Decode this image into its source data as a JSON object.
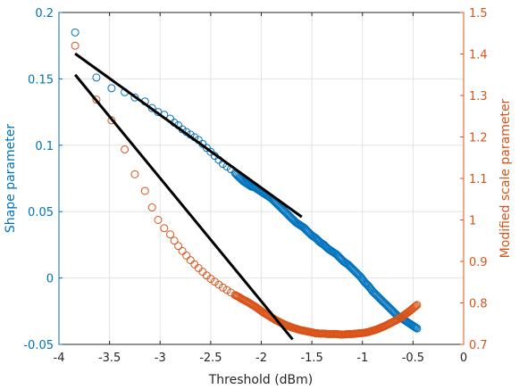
{
  "chart_data": {
    "type": "scatter",
    "title": "",
    "xlabel": "Threshold (dBm)",
    "ylabel_left": "Shape parameter",
    "ylabel_right": "Modified scale parameter",
    "xlim": [
      -4,
      0
    ],
    "ylim_left": [
      -0.05,
      0.2
    ],
    "ylim_right": [
      0.7,
      1.5
    ],
    "x_ticks": [
      "-4",
      "-3.5",
      "-3",
      "-2.5",
      "-2",
      "-1.5",
      "-1",
      "-0.5",
      "0"
    ],
    "y_left_ticks": [
      "-0.05",
      "0",
      "0.05",
      "0.1",
      "0.15",
      "0.2"
    ],
    "y_right_ticks": [
      "0.7",
      "0.8",
      "0.9",
      "1",
      "1.1",
      "1.2",
      "1.3",
      "1.4",
      "1.5"
    ],
    "grid": true,
    "colors": {
      "left_axis": "#0072BD",
      "right_axis": "#D95319",
      "fit": "#000000",
      "axes": "#262626"
    },
    "series": [
      {
        "name": "Shape parameter",
        "axis": "left",
        "marker": "circle",
        "x": [
          -3.84,
          -3.63,
          -3.48,
          -3.35,
          -3.25,
          -3.15,
          -3.08,
          -3.02,
          -2.96,
          -2.9,
          -2.86,
          -2.82,
          -2.78,
          -2.74,
          -2.7,
          -2.66,
          -2.62,
          -2.58,
          -2.54,
          -2.5,
          -2.46,
          -2.42,
          -2.38,
          -2.34,
          -2.3,
          -2.26,
          -2.22,
          -2.18,
          -2.14,
          -2.1,
          -2.06,
          -2.02,
          -1.98,
          -1.94,
          -1.9,
          -1.86,
          -1.82,
          -1.78,
          -1.74,
          -1.7,
          -1.66,
          -1.62,
          -1.58,
          -1.54,
          -1.5,
          -1.46,
          -1.42,
          -1.38,
          -1.34,
          -1.3,
          -1.26,
          -1.22,
          -1.18,
          -1.14,
          -1.1,
          -1.06,
          -1.02,
          -0.98,
          -0.94,
          -0.9,
          -0.86,
          -0.82,
          -0.78,
          -0.74,
          -0.7,
          -0.66,
          -0.62,
          -0.58,
          -0.54,
          -0.5,
          -0.46
        ],
        "y": [
          0.185,
          0.151,
          0.143,
          0.14,
          0.136,
          0.133,
          0.128,
          0.125,
          0.123,
          0.12,
          0.117,
          0.115,
          0.112,
          0.11,
          0.108,
          0.106,
          0.104,
          0.101,
          0.098,
          0.095,
          0.092,
          0.089,
          0.086,
          0.084,
          0.082,
          0.079,
          0.076,
          0.073,
          0.071,
          0.069,
          0.068,
          0.066,
          0.064,
          0.062,
          0.06,
          0.057,
          0.054,
          0.051,
          0.048,
          0.045,
          0.042,
          0.04,
          0.038,
          0.035,
          0.032,
          0.03,
          0.027,
          0.025,
          0.022,
          0.02,
          0.018,
          0.015,
          0.012,
          0.01,
          0.007,
          0.004,
          0.001,
          -0.003,
          -0.006,
          -0.01,
          -0.013,
          -0.016,
          -0.019,
          -0.022,
          -0.025,
          -0.028,
          -0.03,
          -0.032,
          -0.034,
          -0.036,
          -0.038
        ]
      },
      {
        "name": "Modified scale parameter",
        "axis": "right",
        "marker": "circle",
        "x": [
          -3.84,
          -3.63,
          -3.48,
          -3.35,
          -3.25,
          -3.15,
          -3.08,
          -3.02,
          -2.96,
          -2.9,
          -2.86,
          -2.82,
          -2.78,
          -2.74,
          -2.7,
          -2.66,
          -2.62,
          -2.58,
          -2.54,
          -2.5,
          -2.46,
          -2.42,
          -2.38,
          -2.34,
          -2.3,
          -2.26,
          -2.22,
          -2.18,
          -2.14,
          -2.1,
          -2.06,
          -2.02,
          -1.98,
          -1.94,
          -1.9,
          -1.86,
          -1.82,
          -1.78,
          -1.74,
          -1.7,
          -1.66,
          -1.62,
          -1.58,
          -1.54,
          -1.5,
          -1.46,
          -1.42,
          -1.38,
          -1.34,
          -1.3,
          -1.26,
          -1.22,
          -1.18,
          -1.14,
          -1.1,
          -1.06,
          -1.02,
          -0.98,
          -0.94,
          -0.9,
          -0.86,
          -0.82,
          -0.78,
          -0.74,
          -0.7,
          -0.66,
          -0.62,
          -0.58,
          -0.54,
          -0.5,
          -0.46
        ],
        "y": [
          1.42,
          1.29,
          1.24,
          1.17,
          1.11,
          1.07,
          1.03,
          1.0,
          0.98,
          0.965,
          0.95,
          0.937,
          0.925,
          0.914,
          0.903,
          0.893,
          0.884,
          0.875,
          0.866,
          0.858,
          0.851,
          0.844,
          0.837,
          0.831,
          0.825,
          0.819,
          0.814,
          0.808,
          0.803,
          0.797,
          0.791,
          0.784,
          0.777,
          0.771,
          0.765,
          0.759,
          0.754,
          0.749,
          0.745,
          0.741,
          0.738,
          0.735,
          0.733,
          0.731,
          0.729,
          0.727,
          0.726,
          0.726,
          0.725,
          0.725,
          0.725,
          0.724,
          0.724,
          0.725,
          0.725,
          0.726,
          0.727,
          0.728,
          0.73,
          0.733,
          0.736,
          0.74,
          0.744,
          0.749,
          0.754,
          0.759,
          0.765,
          0.772,
          0.779,
          0.787,
          0.795
        ]
      },
      {
        "name": "Linear fit (shape)",
        "axis": "left",
        "type": "line",
        "x": [
          -3.84,
          -1.6
        ],
        "y": [
          0.169,
          0.046
        ]
      },
      {
        "name": "Linear fit (scale)",
        "axis": "right",
        "type": "line",
        "x": [
          -3.84,
          -1.69
        ],
        "y": [
          1.35,
          0.712
        ]
      }
    ]
  }
}
